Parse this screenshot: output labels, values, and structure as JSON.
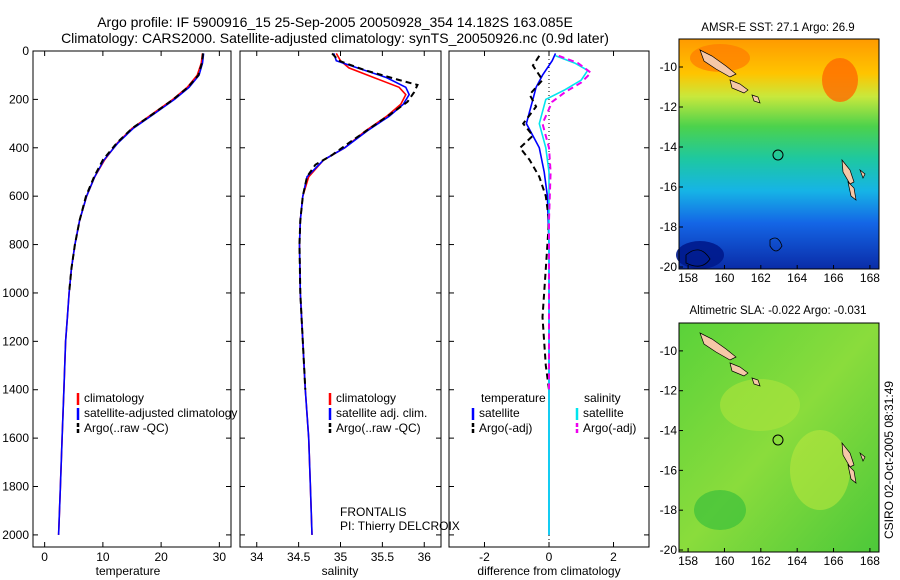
{
  "title_line1": "Argo profile: IF 5900916_15 25-Sep-2005 20050928_354 14.182S 163.085E",
  "title_line2": "Climatology: CARS2000. Satellite-adjusted climatology: synTS_20050926.nc (0.9d later)",
  "side_stamp": "CSIRO 02-Oct-2005 08:31:49",
  "colors": {
    "climatology": "#ff0000",
    "satellite": "#0000ff",
    "argo": "#000000",
    "sat_sal": "#00e5ee",
    "argo_sal": "#ee00ee"
  },
  "chart_data": [
    {
      "id": "temperature",
      "type": "line",
      "xlabel": "temperature",
      "ylim": [
        2050,
        0
      ],
      "y_ticks": [
        0,
        200,
        400,
        600,
        800,
        1000,
        1200,
        1400,
        1600,
        1800,
        2000
      ],
      "xlim": [
        -2,
        32
      ],
      "x_ticks": [
        0,
        10,
        20,
        30
      ],
      "legend": [
        {
          "label": "climatology",
          "color": "#ff0000",
          "style": "solid"
        },
        {
          "label": "satellite-adjusted climatology",
          "color": "#0000ff",
          "style": "solid"
        },
        {
          "label": "Argo(..raw -QC)",
          "color": "#000000",
          "style": "dashed"
        }
      ],
      "series": [
        {
          "name": "climatology",
          "color": "#ff0000",
          "dash": "",
          "width": 1.6,
          "points": [
            [
              27.1,
              10
            ],
            [
              26.9,
              50
            ],
            [
              26.2,
              100
            ],
            [
              24.5,
              150
            ],
            [
              22.0,
              200
            ],
            [
              18.5,
              260
            ],
            [
              15.0,
              320
            ],
            [
              12.5,
              380
            ],
            [
              10.3,
              450
            ],
            [
              8.6,
              520
            ],
            [
              7.2,
              600
            ],
            [
              6.0,
              700
            ],
            [
              5.2,
              800
            ],
            [
              4.6,
              900
            ],
            [
              4.2,
              1000
            ],
            [
              3.9,
              1100
            ],
            [
              3.6,
              1200
            ],
            [
              3.3,
              1400
            ],
            [
              3.0,
              1600
            ],
            [
              2.7,
              1800
            ],
            [
              2.4,
              2000
            ]
          ]
        },
        {
          "name": "satellite",
          "color": "#0000ff",
          "dash": "",
          "width": 1.6,
          "points": [
            [
              27.3,
              10
            ],
            [
              27.1,
              50
            ],
            [
              26.5,
              100
            ],
            [
              24.8,
              150
            ],
            [
              22.3,
              200
            ],
            [
              18.8,
              260
            ],
            [
              15.2,
              320
            ],
            [
              12.6,
              380
            ],
            [
              10.2,
              450
            ],
            [
              8.6,
              520
            ],
            [
              7.2,
              600
            ],
            [
              6.0,
              700
            ],
            [
              5.2,
              800
            ],
            [
              4.6,
              900
            ],
            [
              4.2,
              1000
            ],
            [
              3.9,
              1100
            ],
            [
              3.6,
              1200
            ],
            [
              3.3,
              1400
            ],
            [
              3.0,
              1600
            ],
            [
              2.7,
              1800
            ],
            [
              2.4,
              2000
            ]
          ]
        },
        {
          "name": "Argo",
          "color": "#000000",
          "dash": "6,4",
          "width": 2,
          "points": [
            [
              27.2,
              10
            ],
            [
              27.0,
              50
            ],
            [
              26.4,
              100
            ],
            [
              24.6,
              150
            ],
            [
              22.1,
              200
            ],
            [
              18.6,
              260
            ],
            [
              15.0,
              320
            ],
            [
              12.4,
              380
            ],
            [
              10.0,
              450
            ],
            [
              8.5,
              520
            ],
            [
              7.1,
              600
            ],
            [
              6.0,
              700
            ],
            [
              5.2,
              800
            ],
            [
              4.6,
              900
            ],
            [
              4.2,
              1000
            ]
          ]
        }
      ]
    },
    {
      "id": "salinity",
      "type": "line",
      "xlabel": "salinity",
      "ylim": [
        2050,
        0
      ],
      "xlim": [
        33.8,
        36.2
      ],
      "x_ticks": [
        34,
        34.5,
        35,
        35.5,
        36
      ],
      "legend": [
        {
          "label": "climatology",
          "color": "#ff0000",
          "style": "solid"
        },
        {
          "label": "satellite adj. clim.",
          "color": "#0000ff",
          "style": "solid"
        },
        {
          "label": "Argo(..raw -QC)",
          "color": "#000000",
          "style": "dashed"
        }
      ],
      "annotations": [
        "FRONTALIS",
        "PI: Thierry DELCROIX"
      ],
      "series": [
        {
          "name": "climatology",
          "color": "#ff0000",
          "dash": "",
          "width": 1.6,
          "points": [
            [
              34.95,
              10
            ],
            [
              35.0,
              40
            ],
            [
              35.1,
              70
            ],
            [
              35.4,
              110
            ],
            [
              35.7,
              150
            ],
            [
              35.78,
              180
            ],
            [
              35.72,
              220
            ],
            [
              35.55,
              270
            ],
            [
              35.3,
              330
            ],
            [
              35.05,
              400
            ],
            [
              34.8,
              450
            ],
            [
              34.62,
              520
            ],
            [
              34.55,
              600
            ],
            [
              34.52,
              700
            ],
            [
              34.51,
              800
            ],
            [
              34.52,
              1000
            ],
            [
              34.55,
              1200
            ],
            [
              34.58,
              1400
            ],
            [
              34.62,
              1600
            ],
            [
              34.64,
              1800
            ],
            [
              34.66,
              2000
            ]
          ]
        },
        {
          "name": "satellite",
          "color": "#0000ff",
          "dash": "",
          "width": 1.6,
          "points": [
            [
              34.92,
              10
            ],
            [
              34.95,
              40
            ],
            [
              35.2,
              70
            ],
            [
              35.55,
              110
            ],
            [
              35.78,
              150
            ],
            [
              35.82,
              180
            ],
            [
              35.75,
              220
            ],
            [
              35.58,
              270
            ],
            [
              35.32,
              330
            ],
            [
              35.05,
              400
            ],
            [
              34.8,
              450
            ],
            [
              34.6,
              520
            ],
            [
              34.55,
              600
            ],
            [
              34.52,
              700
            ],
            [
              34.51,
              800
            ],
            [
              34.52,
              1000
            ],
            [
              34.55,
              1200
            ],
            [
              34.58,
              1400
            ],
            [
              34.62,
              1600
            ],
            [
              34.64,
              1800
            ],
            [
              34.66,
              2000
            ]
          ]
        },
        {
          "name": "Argo",
          "color": "#000000",
          "dash": "6,4",
          "width": 2,
          "points": [
            [
              34.9,
              10
            ],
            [
              34.98,
              40
            ],
            [
              35.3,
              80
            ],
            [
              35.7,
              120
            ],
            [
              35.92,
              140
            ],
            [
              35.88,
              170
            ],
            [
              35.8,
              210
            ],
            [
              35.6,
              260
            ],
            [
              35.35,
              320
            ],
            [
              35.1,
              380
            ],
            [
              34.9,
              430
            ],
            [
              34.7,
              470
            ],
            [
              34.6,
              520
            ],
            [
              34.55,
              600
            ],
            [
              34.52,
              700
            ],
            [
              34.51,
              800
            ],
            [
              34.52,
              1000
            ],
            [
              34.55,
              1200
            ],
            [
              34.58,
              1400
            ]
          ]
        }
      ]
    },
    {
      "id": "difference",
      "type": "line",
      "xlabel": "difference from climatology",
      "ylim": [
        2050,
        0
      ],
      "xlim": [
        -3.1,
        3.1
      ],
      "x_ticks": [
        -2,
        0,
        2
      ],
      "zero_line": 0,
      "legend_columns": [
        {
          "header": "temperature",
          "items": [
            {
              "label": "satellite",
              "color": "#0000ff",
              "style": "solid"
            },
            {
              "label": "Argo(-adj)",
              "color": "#000000",
              "style": "dashed"
            }
          ]
        },
        {
          "header": "salinity",
          "items": [
            {
              "label": "satellite",
              "color": "#00e5ee",
              "style": "solid"
            },
            {
              "label": "Argo(-adj)",
              "color": "#ee00ee",
              "style": "dashed"
            }
          ]
        }
      ],
      "series": [
        {
          "name": "temperature satellite",
          "color": "#0000ff",
          "dash": "",
          "width": 1.6,
          "points": [
            [
              0.2,
              10
            ],
            [
              0.1,
              40
            ],
            [
              -0.2,
              100
            ],
            [
              -0.4,
              150
            ],
            [
              -0.5,
              200
            ],
            [
              -0.6,
              250
            ],
            [
              -0.7,
              300
            ],
            [
              -0.5,
              350
            ],
            [
              -0.3,
              400
            ],
            [
              -0.15,
              500
            ],
            [
              -0.05,
              600
            ],
            [
              0,
              800
            ],
            [
              0,
              2000
            ]
          ]
        },
        {
          "name": "temperature Argo",
          "color": "#000000",
          "dash": "6,4",
          "width": 2,
          "points": [
            [
              -0.3,
              20
            ],
            [
              -0.5,
              60
            ],
            [
              -0.2,
              120
            ],
            [
              -0.6,
              180
            ],
            [
              -0.4,
              230
            ],
            [
              -0.8,
              300
            ],
            [
              -0.5,
              350
            ],
            [
              -0.9,
              400
            ],
            [
              -0.6,
              450
            ],
            [
              -0.3,
              520
            ],
            [
              -0.1,
              600
            ],
            [
              0,
              700
            ],
            [
              -0.1,
              900
            ],
            [
              -0.2,
              1100
            ],
            [
              -0.1,
              1300
            ],
            [
              0,
              1400
            ]
          ]
        },
        {
          "name": "salinity satellite",
          "color": "#00e5ee",
          "dash": "",
          "width": 1.6,
          "points": [
            [
              0.2,
              20
            ],
            [
              0.8,
              50
            ],
            [
              1.2,
              80
            ],
            [
              1.0,
              120
            ],
            [
              0.5,
              160
            ],
            [
              -0.1,
              200
            ],
            [
              -0.3,
              300
            ],
            [
              -0.1,
              400
            ],
            [
              0,
              500
            ],
            [
              0,
              2000
            ]
          ]
        },
        {
          "name": "salinity Argo",
          "color": "#ee00ee",
          "dash": "6,4",
          "width": 2,
          "points": [
            [
              0.3,
              20
            ],
            [
              0.9,
              50
            ],
            [
              1.3,
              90
            ],
            [
              1.0,
              130
            ],
            [
              0.5,
              170
            ],
            [
              0.1,
              210
            ],
            [
              -0.2,
              300
            ],
            [
              0,
              400
            ],
            [
              0.05,
              500
            ],
            [
              0,
              700
            ],
            [
              0,
              1400
            ]
          ]
        }
      ]
    }
  ],
  "maps": [
    {
      "id": "sst",
      "title": "AMSR-E SST: 27.1 Argo: 26.9",
      "lon_ticks": [
        "158",
        "160",
        "162",
        "164",
        "166",
        "168"
      ],
      "lat_ticks": [
        "-10",
        "-12",
        "-14",
        "-16",
        "-18",
        "-20"
      ]
    },
    {
      "id": "sla",
      "title": "Altimetric SLA: -0.022 Argo: -0.031",
      "lon_ticks": [
        "158",
        "160",
        "162",
        "164",
        "166",
        "168"
      ],
      "lat_ticks": [
        "-10",
        "-12",
        "-14",
        "-16",
        "-18",
        "-20"
      ]
    }
  ]
}
